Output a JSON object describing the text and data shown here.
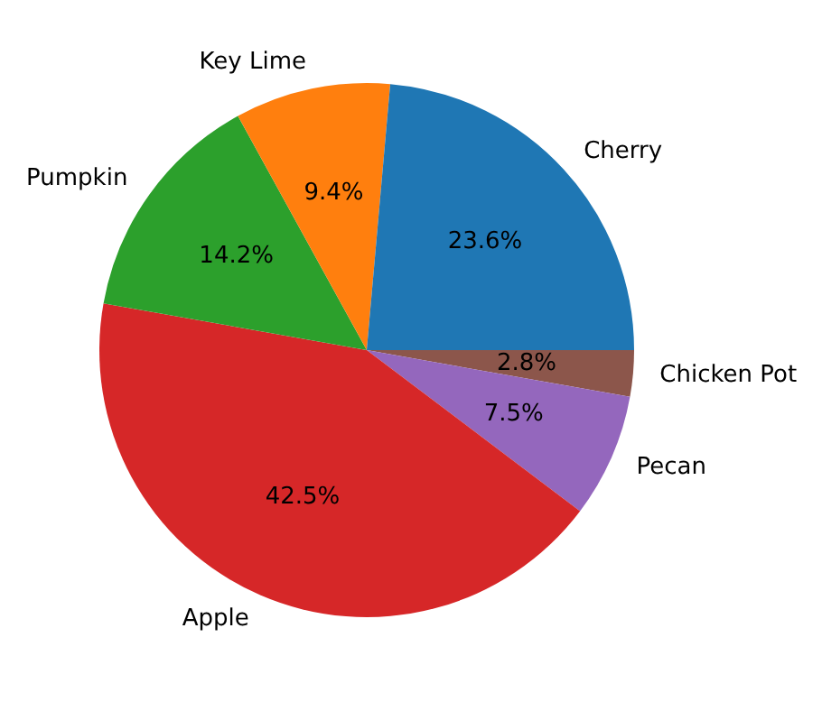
{
  "chart_data": {
    "type": "pie",
    "categories": [
      "Cherry",
      "Key Lime",
      "Pumpkin",
      "Apple",
      "Pecan",
      "Chicken Pot"
    ],
    "values": [
      23.6,
      9.4,
      14.2,
      42.5,
      7.5,
      2.8
    ],
    "colors": [
      "#1f77b4",
      "#ff7f0e",
      "#2ca02c",
      "#d62728",
      "#9467bd",
      "#8c564b"
    ],
    "value_labels": [
      "23.6%",
      "9.4%",
      "14.2%",
      "42.5%",
      "7.5%",
      "2.8%"
    ],
    "legend": false
  }
}
